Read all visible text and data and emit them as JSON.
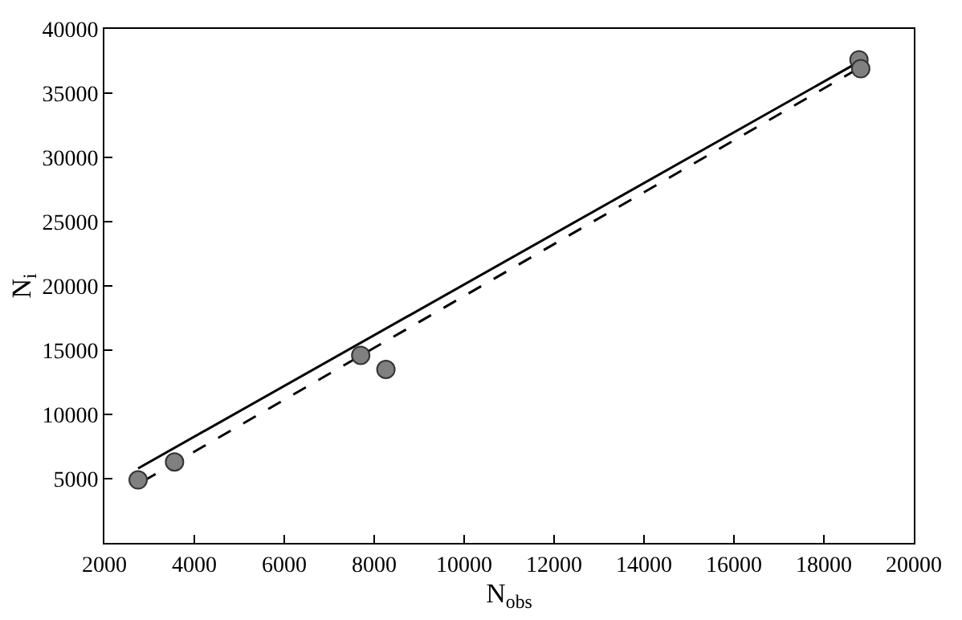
{
  "chart_data": {
    "type": "scatter",
    "xlabel": "N$_{obs}$",
    "ylabel": "N$_{i}$",
    "xlim": [
      2000,
      20000
    ],
    "xticks": [
      2000,
      4000,
      6000,
      8000,
      10000,
      12000,
      14000,
      16000,
      18000,
      20000
    ],
    "ylim": [
      0,
      40000
    ],
    "yticks": [
      {
        "value": 0,
        "label": null
      },
      5000,
      10000,
      15000,
      20000,
      25000,
      30000,
      35000,
      40000
    ],
    "series": [
      {
        "type": "line",
        "color": "#000000",
        "line_style": "solid",
        "marker": "none",
        "x": [
          2750,
          18760
        ],
        "values": [
          5800,
          37400
        ]
      },
      {
        "type": "line",
        "color": "#000000",
        "line_style": "dashed",
        "marker": "none",
        "x": [
          2860,
          18760
        ],
        "values": [
          4800,
          36900
        ]
      },
      {
        "color": "#808080",
        "marker": "circle",
        "x": [
          2750,
          3560,
          7700,
          8260,
          18780,
          18820
        ],
        "values": [
          4900,
          6300,
          14600,
          13500,
          37600,
          36900
        ]
      }
    ]
  }
}
